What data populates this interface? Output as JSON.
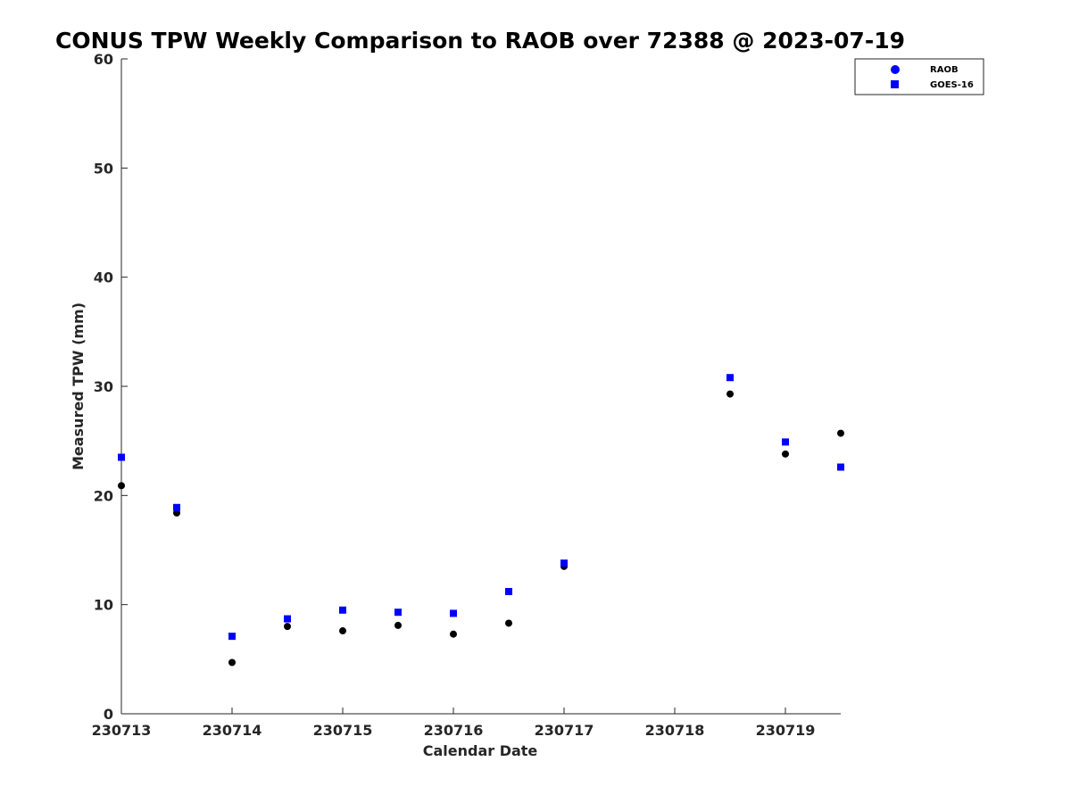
{
  "chart_data": {
    "type": "scatter",
    "title": "CONUS TPW Weekly Comparison to RAOB over 72388 @ 2023-07-19",
    "xlabel": "Calendar Date",
    "ylabel": "Measured TPW (mm)",
    "x_tick_labels": [
      "230713",
      "230714",
      "230715",
      "230716",
      "230717",
      "230718",
      "230719"
    ],
    "y_tick_labels": [
      "0",
      "10",
      "20",
      "30",
      "40",
      "50",
      "60"
    ],
    "xlim": [
      "2023-07-13 00:00",
      "2023-07-19 12:00"
    ],
    "ylim": [
      0,
      60
    ],
    "grid": false,
    "legend_position": "top-right",
    "series": [
      {
        "name": "RAOB",
        "marker": "circle",
        "color": "#000000",
        "legend_color": "#0000ff",
        "points": [
          {
            "x": "2023-07-13 00:00",
            "y": 20.9
          },
          {
            "x": "2023-07-13 12:00",
            "y": 18.4
          },
          {
            "x": "2023-07-14 00:00",
            "y": 4.7
          },
          {
            "x": "2023-07-14 12:00",
            "y": 8.0
          },
          {
            "x": "2023-07-15 00:00",
            "y": 7.6
          },
          {
            "x": "2023-07-15 12:00",
            "y": 8.1
          },
          {
            "x": "2023-07-16 00:00",
            "y": 7.3
          },
          {
            "x": "2023-07-16 12:00",
            "y": 8.3
          },
          {
            "x": "2023-07-17 00:00",
            "y": 13.5
          },
          {
            "x": "2023-07-18 12:00",
            "y": 29.3
          },
          {
            "x": "2023-07-19 00:00",
            "y": 23.8
          },
          {
            "x": "2023-07-19 12:00",
            "y": 25.7
          }
        ]
      },
      {
        "name": "GOES-16",
        "marker": "square",
        "color": "#0000ff",
        "legend_color": "#0000ff",
        "points": [
          {
            "x": "2023-07-13 00:00",
            "y": 23.5
          },
          {
            "x": "2023-07-13 12:00",
            "y": 18.9
          },
          {
            "x": "2023-07-14 00:00",
            "y": 7.1
          },
          {
            "x": "2023-07-14 12:00",
            "y": 8.7
          },
          {
            "x": "2023-07-15 00:00",
            "y": 9.5
          },
          {
            "x": "2023-07-15 12:00",
            "y": 9.3
          },
          {
            "x": "2023-07-16 00:00",
            "y": 9.2
          },
          {
            "x": "2023-07-16 12:00",
            "y": 11.2
          },
          {
            "x": "2023-07-17 00:00",
            "y": 13.8
          },
          {
            "x": "2023-07-18 12:00",
            "y": 30.8
          },
          {
            "x": "2023-07-19 00:00",
            "y": 24.9
          },
          {
            "x": "2023-07-19 12:00",
            "y": 22.6
          }
        ]
      }
    ]
  }
}
